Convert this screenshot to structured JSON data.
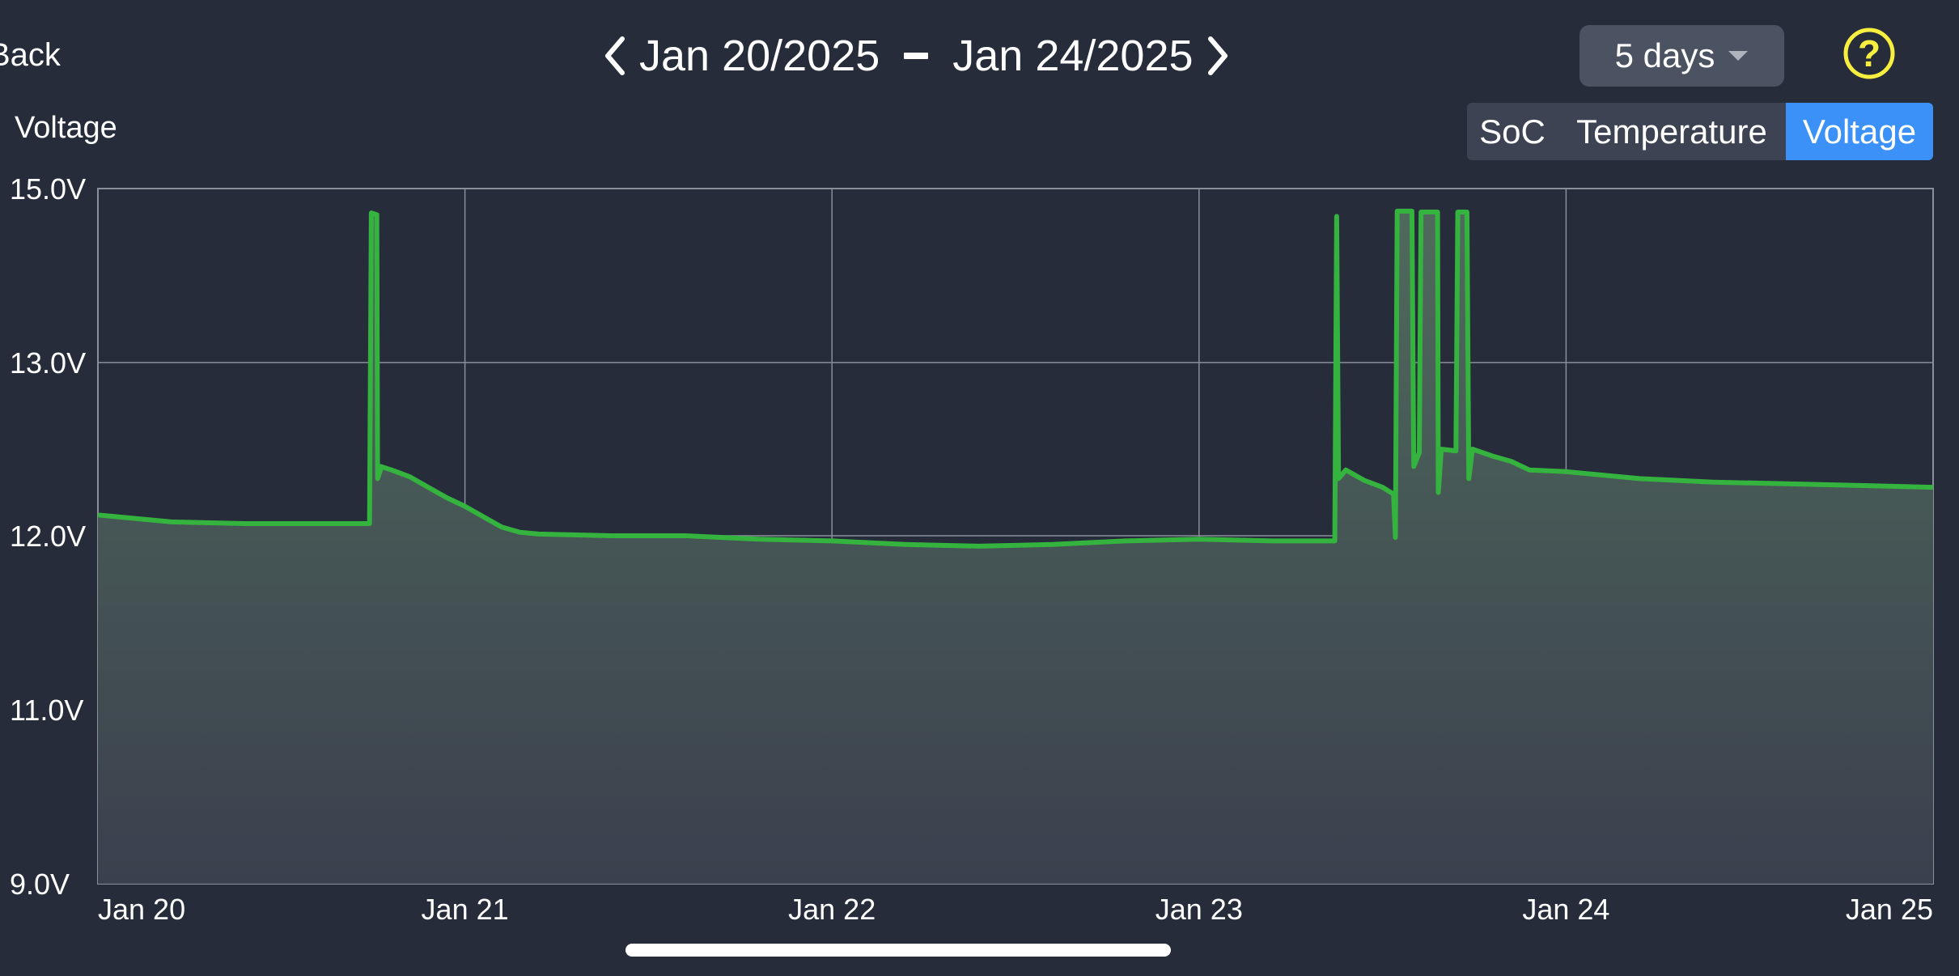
{
  "nav": {
    "back_label": "Back",
    "start_date": "Jan 20/2025",
    "end_date": "Jan 24/2025"
  },
  "range_select": {
    "value": "5 days"
  },
  "help": {
    "symbol": "?"
  },
  "chart_title": "Voltage",
  "segments": [
    {
      "label": "SoC",
      "active": false
    },
    {
      "label": "Temperature",
      "active": false
    },
    {
      "label": "Voltage",
      "active": true
    }
  ],
  "colors": {
    "background": "#262c3a",
    "line": "#35b33f",
    "active_segment": "#3b91f7",
    "help_icon": "#f7ee3f"
  },
  "chart_data": {
    "type": "area",
    "ylabel": "Voltage",
    "x_axis": "days since Jan 20",
    "xlim": [
      0,
      5
    ],
    "y_ticks": [
      {
        "value": 15.0,
        "label": "15.0V"
      },
      {
        "value": 13.0,
        "label": "13.0V"
      },
      {
        "value": 12.0,
        "label": "12.0V"
      },
      {
        "value": 11.0,
        "label": "11.0V"
      },
      {
        "value": 9.0,
        "label": "9.0V"
      }
    ],
    "x_ticks": [
      {
        "value": 0,
        "label": "Jan 20"
      },
      {
        "value": 1,
        "label": "Jan 21"
      },
      {
        "value": 2,
        "label": "Jan 22"
      },
      {
        "value": 3,
        "label": "Jan 23"
      },
      {
        "value": 4,
        "label": "Jan 24"
      },
      {
        "value": 5,
        "label": "Jan 25"
      }
    ],
    "grid": true,
    "series": [
      {
        "name": "Voltage",
        "points": [
          [
            0.0,
            12.12
          ],
          [
            0.2,
            12.08
          ],
          [
            0.4,
            12.07
          ],
          [
            0.6,
            12.07
          ],
          [
            0.74,
            12.07
          ],
          [
            0.745,
            14.72
          ],
          [
            0.76,
            14.7
          ],
          [
            0.762,
            12.33
          ],
          [
            0.77,
            12.38
          ],
          [
            0.77,
            12.4
          ],
          [
            0.8,
            12.38
          ],
          [
            0.85,
            12.34
          ],
          [
            0.9,
            12.28
          ],
          [
            0.95,
            12.22
          ],
          [
            1.0,
            12.17
          ],
          [
            1.05,
            12.11
          ],
          [
            1.1,
            12.05
          ],
          [
            1.15,
            12.02
          ],
          [
            1.2,
            12.01
          ],
          [
            1.4,
            12.0
          ],
          [
            1.6,
            12.0
          ],
          [
            1.8,
            11.98
          ],
          [
            2.0,
            11.97
          ],
          [
            2.2,
            11.95
          ],
          [
            2.4,
            11.94
          ],
          [
            2.6,
            11.95
          ],
          [
            2.8,
            11.97
          ],
          [
            3.0,
            11.98
          ],
          [
            3.2,
            11.97
          ],
          [
            3.37,
            11.97
          ],
          [
            3.375,
            14.68
          ],
          [
            3.38,
            12.33
          ],
          [
            3.4,
            12.38
          ],
          [
            3.45,
            12.32
          ],
          [
            3.5,
            12.28
          ],
          [
            3.53,
            12.24
          ],
          [
            3.535,
            11.99
          ],
          [
            3.54,
            14.74
          ],
          [
            3.58,
            14.74
          ],
          [
            3.585,
            12.4
          ],
          [
            3.6,
            12.48
          ],
          [
            3.605,
            14.73
          ],
          [
            3.65,
            14.73
          ],
          [
            3.652,
            12.25
          ],
          [
            3.66,
            12.5
          ],
          [
            3.7,
            12.49
          ],
          [
            3.705,
            14.73
          ],
          [
            3.73,
            14.73
          ],
          [
            3.735,
            12.33
          ],
          [
            3.745,
            12.5
          ],
          [
            3.8,
            12.46
          ],
          [
            3.85,
            12.43
          ],
          [
            3.9,
            12.38
          ],
          [
            4.0,
            12.37
          ],
          [
            4.2,
            12.33
          ],
          [
            4.4,
            12.31
          ],
          [
            4.6,
            12.3
          ],
          [
            4.8,
            12.29
          ],
          [
            5.0,
            12.28
          ]
        ]
      }
    ]
  }
}
